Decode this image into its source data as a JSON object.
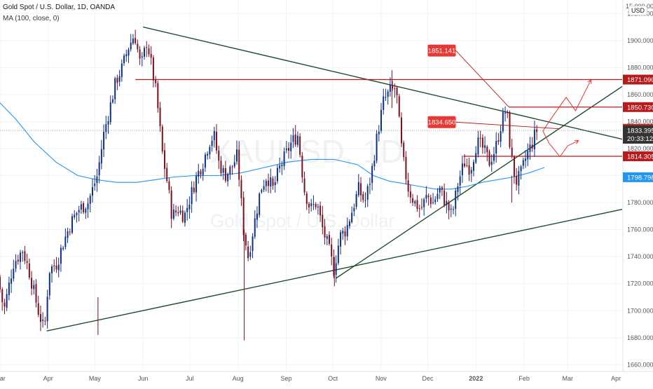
{
  "header": {
    "title": "Gold Spot / U.S. Dollar, 1D, OANDA",
    "indicator": "MA (100, close, 0)",
    "currency": "USD"
  },
  "watermark": {
    "symbol": "XAUUSD, 1D",
    "name": "Gold Spot / U.S. Dollar"
  },
  "chart_data": {
    "type": "candlestick",
    "title": "Gold Spot / U.S. Dollar, 1D, OANDA",
    "ylim": [
      1655,
      1930
    ],
    "y_ticks": [
      "1920.000",
      "1900.000",
      "1880.000",
      "1860.000",
      "1840.000",
      "1820.000",
      "1800.000",
      "1780.000",
      "1760.000",
      "1740.000",
      "1720.000",
      "1700.000",
      "1680.000",
      "1660.000"
    ],
    "y_top_label": "15 000.000",
    "x_range_days": [
      0,
      400
    ],
    "x_ticks": [
      {
        "label": "Mar",
        "day": 0
      },
      {
        "label": "Apr",
        "day": 31
      },
      {
        "label": "May",
        "day": 61
      },
      {
        "label": "Jun",
        "day": 92
      },
      {
        "label": "Jul",
        "day": 122
      },
      {
        "label": "Aug",
        "day": 153
      },
      {
        "label": "Sep",
        "day": 184
      },
      {
        "label": "Oct",
        "day": 214
      },
      {
        "label": "Nov",
        "day": 245
      },
      {
        "label": "Dec",
        "day": 275
      },
      {
        "label": "2022",
        "day": 306
      },
      {
        "label": "Feb",
        "day": 337
      },
      {
        "label": "Mar",
        "day": 365
      },
      {
        "label": "Apr",
        "day": 396
      }
    ],
    "price_path": [
      [
        0,
        1725
      ],
      [
        4,
        1700
      ],
      [
        10,
        1735
      ],
      [
        16,
        1745
      ],
      [
        20,
        1730
      ],
      [
        26,
        1700
      ],
      [
        30,
        1685
      ],
      [
        33,
        1730
      ],
      [
        38,
        1735
      ],
      [
        42,
        1750
      ],
      [
        47,
        1765
      ],
      [
        52,
        1775
      ],
      [
        58,
        1780
      ],
      [
        64,
        1800
      ],
      [
        68,
        1830
      ],
      [
        72,
        1850
      ],
      [
        76,
        1870
      ],
      [
        80,
        1880
      ],
      [
        84,
        1895
      ],
      [
        88,
        1905
      ],
      [
        92,
        1880
      ],
      [
        96,
        1900
      ],
      [
        99,
        1880
      ],
      [
        102,
        1860
      ],
      [
        106,
        1815
      ],
      [
        109,
        1795
      ],
      [
        112,
        1770
      ],
      [
        116,
        1775
      ],
      [
        120,
        1770
      ],
      [
        124,
        1785
      ],
      [
        128,
        1800
      ],
      [
        132,
        1810
      ],
      [
        136,
        1825
      ],
      [
        139,
        1830
      ],
      [
        142,
        1810
      ],
      [
        146,
        1800
      ],
      [
        150,
        1805
      ],
      [
        154,
        1815
      ],
      [
        158,
        1760
      ],
      [
        161,
        1740
      ],
      [
        165,
        1765
      ],
      [
        169,
        1790
      ],
      [
        173,
        1800
      ],
      [
        177,
        1790
      ],
      [
        181,
        1805
      ],
      [
        185,
        1815
      ],
      [
        189,
        1825
      ],
      [
        193,
        1830
      ],
      [
        197,
        1790
      ],
      [
        201,
        1775
      ],
      [
        205,
        1780
      ],
      [
        209,
        1760
      ],
      [
        213,
        1745
      ],
      [
        216,
        1730
      ],
      [
        220,
        1755
      ],
      [
        224,
        1760
      ],
      [
        228,
        1775
      ],
      [
        232,
        1790
      ],
      [
        236,
        1780
      ],
      [
        240,
        1800
      ],
      [
        244,
        1830
      ],
      [
        248,
        1855
      ],
      [
        252,
        1862
      ],
      [
        256,
        1865
      ],
      [
        260,
        1815
      ],
      [
        264,
        1790
      ],
      [
        268,
        1780
      ],
      [
        272,
        1775
      ],
      [
        276,
        1785
      ],
      [
        280,
        1780
      ],
      [
        284,
        1790
      ],
      [
        288,
        1780
      ],
      [
        292,
        1770
      ],
      [
        296,
        1795
      ],
      [
        300,
        1810
      ],
      [
        304,
        1805
      ],
      [
        308,
        1825
      ],
      [
        312,
        1820
      ],
      [
        316,
        1810
      ],
      [
        320,
        1820
      ],
      [
        324,
        1840
      ],
      [
        327,
        1850
      ],
      [
        330,
        1815
      ],
      [
        333,
        1795
      ],
      [
        336,
        1800
      ],
      [
        340,
        1815
      ],
      [
        344,
        1825
      ],
      [
        346,
        1833.4
      ]
    ],
    "series": [
      {
        "name": "MA (100, close, 0)",
        "color": "#2196f3",
        "points": [
          [
            -1,
            1855
          ],
          [
            10,
            1842
          ],
          [
            22,
            1825
          ],
          [
            36,
            1810
          ],
          [
            50,
            1800
          ],
          [
            62,
            1797
          ],
          [
            75,
            1795
          ],
          [
            88,
            1795
          ],
          [
            100,
            1797
          ],
          [
            112,
            1799
          ],
          [
            125,
            1800
          ],
          [
            140,
            1800
          ],
          [
            155,
            1802
          ],
          [
            170,
            1806
          ],
          [
            185,
            1810
          ],
          [
            200,
            1812
          ],
          [
            215,
            1812
          ],
          [
            230,
            1808
          ],
          [
            240,
            1800
          ],
          [
            250,
            1796
          ],
          [
            260,
            1794
          ],
          [
            270,
            1792
          ],
          [
            280,
            1790
          ],
          [
            290,
            1790
          ],
          [
            300,
            1792
          ],
          [
            310,
            1795
          ],
          [
            320,
            1797
          ],
          [
            330,
            1799
          ],
          [
            340,
            1802
          ],
          [
            350,
            1806
          ]
        ]
      }
    ],
    "trendlines": [
      {
        "name": "descending-resistance",
        "color": "#1e4d2b",
        "from": [
          92,
          1910
        ],
        "to": [
          400,
          1827
        ]
      },
      {
        "name": "long-term-support",
        "color": "#1e4d2b",
        "from": [
          30,
          1685
        ],
        "to": [
          400,
          1775
        ]
      },
      {
        "name": "rising-support",
        "color": "#1e4d2b",
        "from": [
          216,
          1724
        ],
        "to": [
          400,
          1866
        ]
      }
    ],
    "levels": [
      {
        "value": 1871.09,
        "label": "1871.090",
        "color": "#b71c1c",
        "from_day": 87
      },
      {
        "value": 1850.73,
        "label": "1850.730",
        "color": "#b71c1c",
        "from_day": 327
      },
      {
        "value": 1814.305,
        "label": "1814.305",
        "color": "#b71c1c",
        "from_day": 298
      }
    ],
    "price_tags": [
      {
        "label": "1871.090",
        "color": "#b71c1c"
      },
      {
        "label": "1850.730",
        "color": "#b71c1c"
      },
      {
        "label": "1834.650",
        "color": "#c62828"
      },
      {
        "label": "1833.395",
        "sub": "20:33:12",
        "color": "#333333"
      },
      {
        "label": "1814.305",
        "color": "#b71c1c"
      },
      {
        "label": "1798.798",
        "color": "#2196f3"
      }
    ],
    "callouts": [
      {
        "label": "1851.141",
        "color": "#e53935",
        "box_day": 275,
        "box_price": 1897,
        "point_day": 327,
        "point_price": 1851
      },
      {
        "label": "1834.650",
        "color": "#e53935",
        "box_day": 275,
        "box_price": 1844,
        "point_day": 360,
        "point_price": 1834.65
      }
    ],
    "projection_paths": [
      {
        "color": "#e53935",
        "points": [
          [
            349,
            1833
          ],
          [
            356,
            1845
          ],
          [
            364,
            1858
          ],
          [
            370,
            1848
          ],
          [
            380,
            1871
          ]
        ]
      },
      {
        "color": "#e53935",
        "points": [
          [
            349,
            1833
          ],
          [
            353,
            1824
          ],
          [
            360,
            1814
          ],
          [
            365,
            1822
          ],
          [
            372,
            1826
          ]
        ]
      }
    ]
  }
}
